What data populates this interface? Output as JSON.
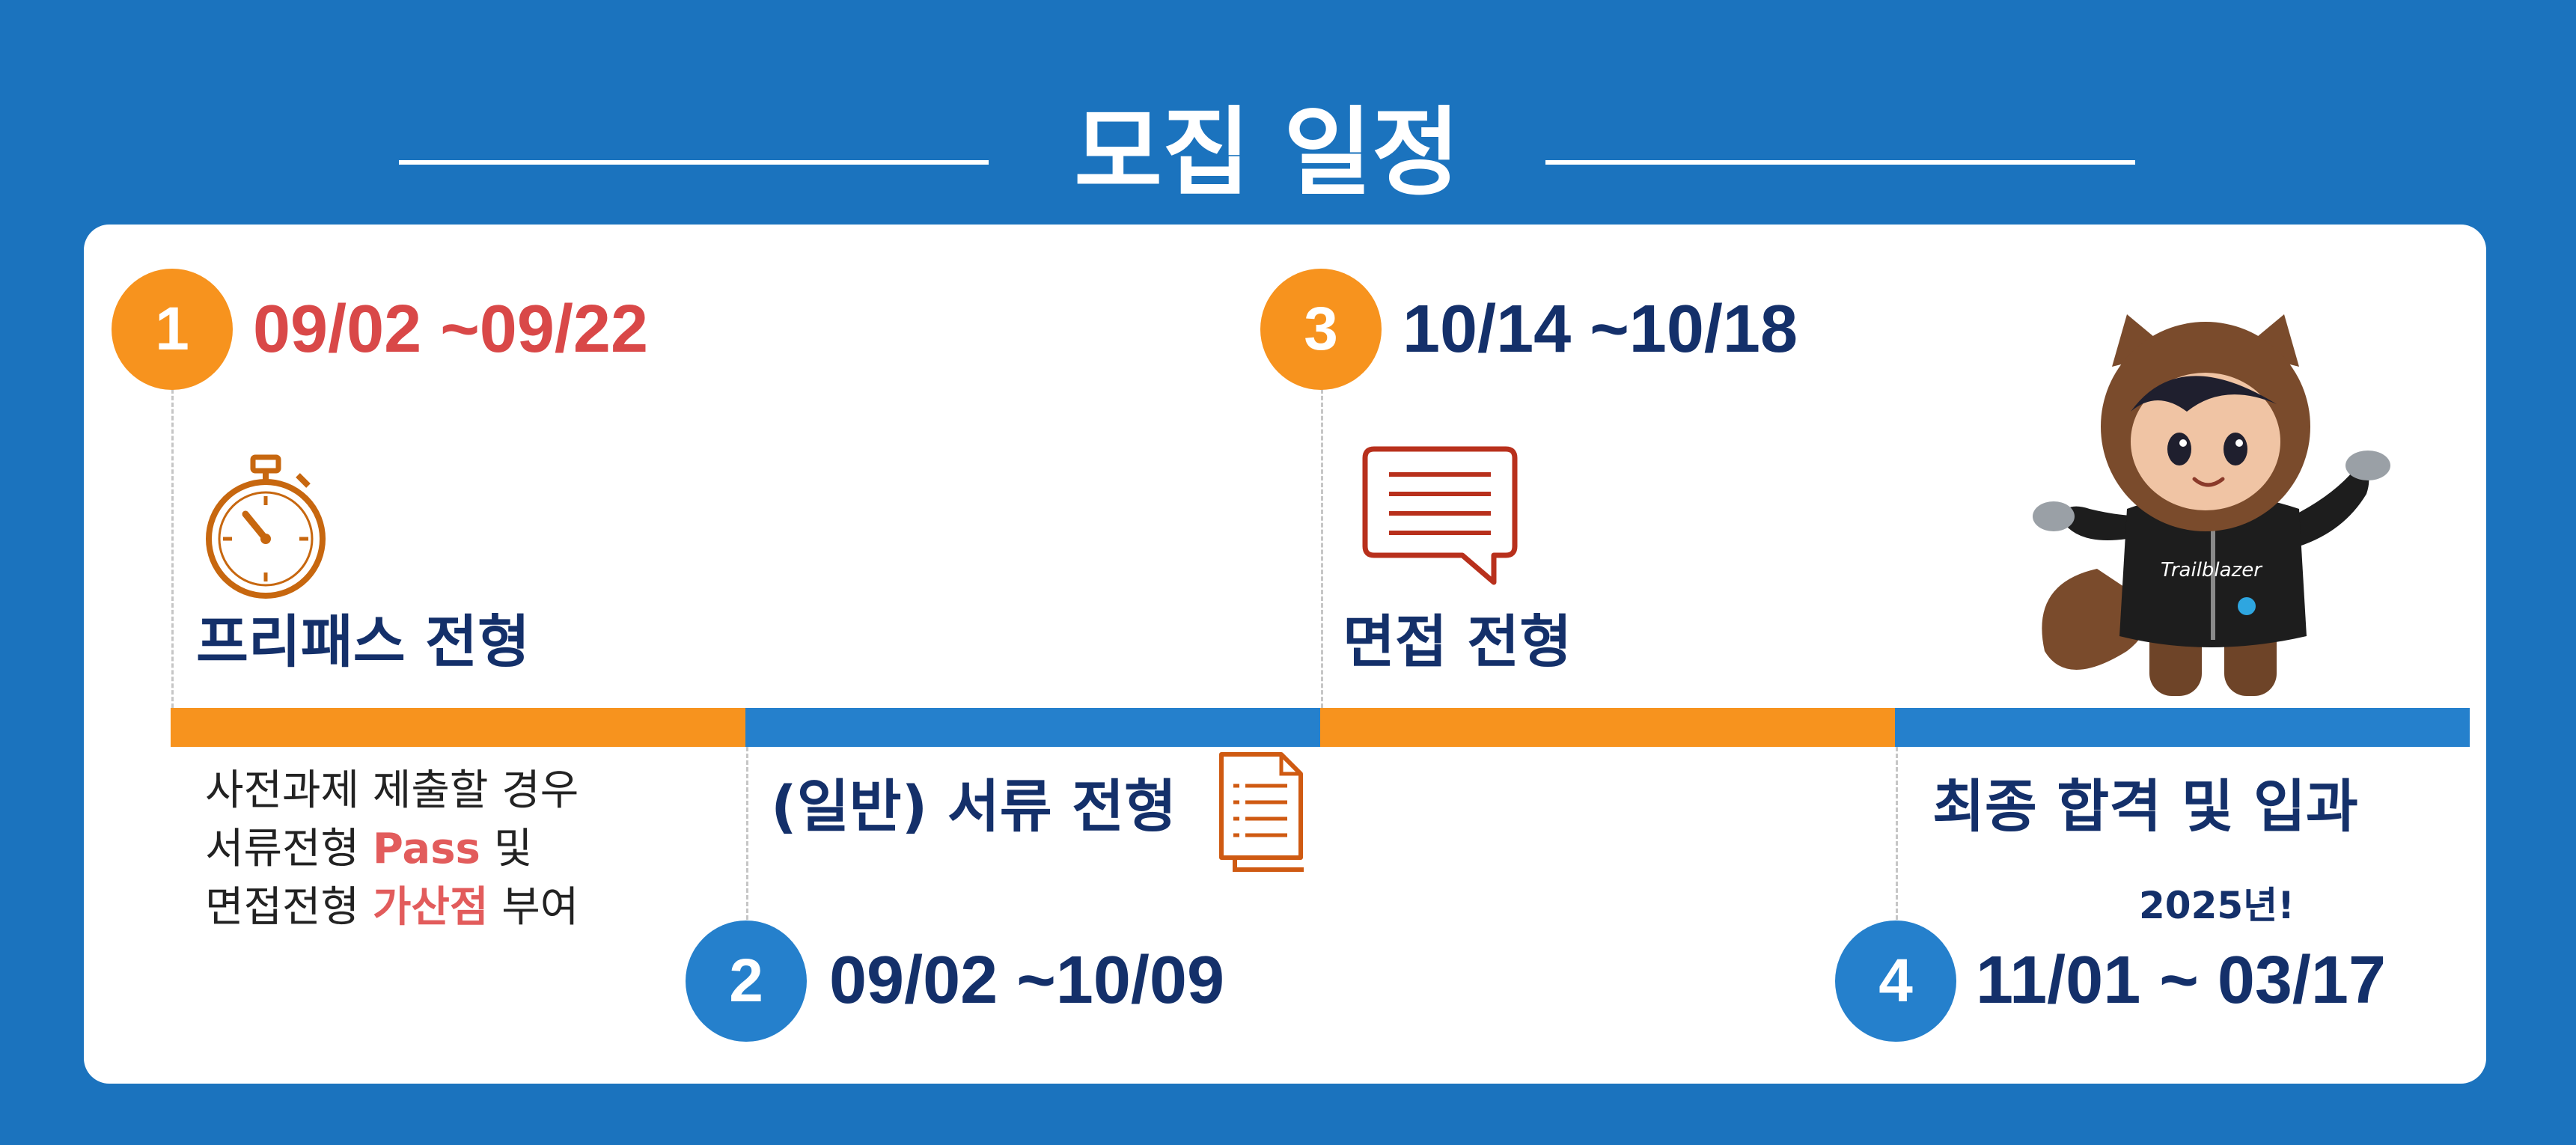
{
  "title": "모집 일정",
  "colors": {
    "background": "#1b73be",
    "orange": "#f7931e",
    "blue": "#2580cc",
    "navy": "#14306a",
    "red": "#d94848",
    "highlight": "#e25c5c"
  },
  "steps": [
    {
      "number": "1",
      "date": "09/02 ~09/22",
      "heading": "프리패스 전형",
      "icon": "stopwatch-icon",
      "description": {
        "line1": "사전과제 제출할 경우",
        "line2_pre": "서류전형 ",
        "line2_highlight": "Pass",
        "line2_post": " 및",
        "line3_pre": "면접전형 ",
        "line3_highlight": "가산점",
        "line3_post": " 부여"
      }
    },
    {
      "number": "2",
      "date": "09/02 ~10/09",
      "heading": "(일반) 서류 전형",
      "icon": "document-icon"
    },
    {
      "number": "3",
      "date": "10/14 ~10/18",
      "heading": "면접 전형",
      "icon": "chat-bubble-icon"
    },
    {
      "number": "4",
      "date": "11/01 ~ 03/17",
      "heading": "최종 합격 및 입과",
      "note": "2025년!"
    }
  ],
  "mascot": {
    "icon": "mascot-icon",
    "hoodie_text": "Trailblazer"
  }
}
